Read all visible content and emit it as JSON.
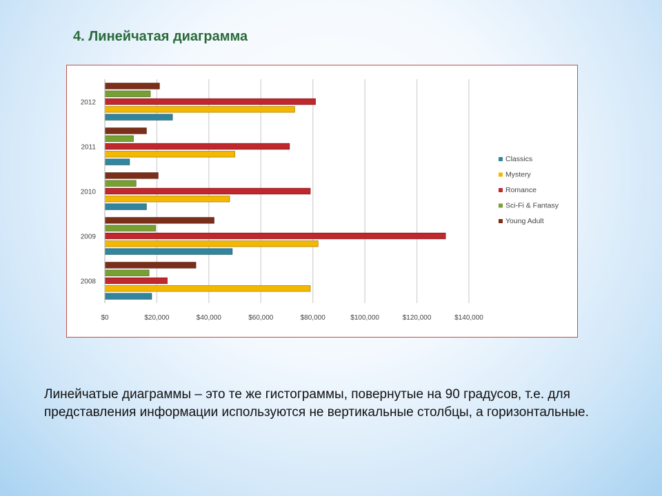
{
  "slide": {
    "title": "4. Линейчатая диаграмма",
    "body": "Линейчатые диаграммы – это те же гистограммы, повернутые на 90 градусов, т.е. для представления информации используются не вертикальные столбцы, а горизонтальные."
  },
  "chart_data": {
    "type": "bar",
    "orientation": "horizontal",
    "categories": [
      "2008",
      "2009",
      "2010",
      "2011",
      "2012"
    ],
    "series": [
      {
        "name": "Classics",
        "color": "#31859c",
        "values": [
          18000,
          49000,
          16000,
          9500,
          26000
        ]
      },
      {
        "name": "Mystery",
        "color": "#f5b800",
        "values": [
          79000,
          82000,
          48000,
          50000,
          73000
        ]
      },
      {
        "name": "Romance",
        "color": "#c0282d",
        "values": [
          24000,
          131000,
          79000,
          71000,
          81000
        ]
      },
      {
        "name": "Sci-Fi & Fantasy",
        "color": "#77a033",
        "values": [
          17000,
          19500,
          12000,
          11000,
          17500
        ]
      },
      {
        "name": "Young Adult",
        "color": "#7b2f19",
        "values": [
          35000,
          42000,
          20500,
          16000,
          21000
        ]
      }
    ],
    "xlim": [
      0,
      140000
    ],
    "x_ticks": [
      0,
      20000,
      40000,
      60000,
      80000,
      100000,
      120000,
      140000
    ],
    "x_tick_labels": [
      "$0",
      "$20,000",
      "$40,000",
      "$60,000",
      "$80,000",
      "$100,000",
      "$120,000",
      "$140,000"
    ],
    "grid": true,
    "legend_position": "right"
  }
}
